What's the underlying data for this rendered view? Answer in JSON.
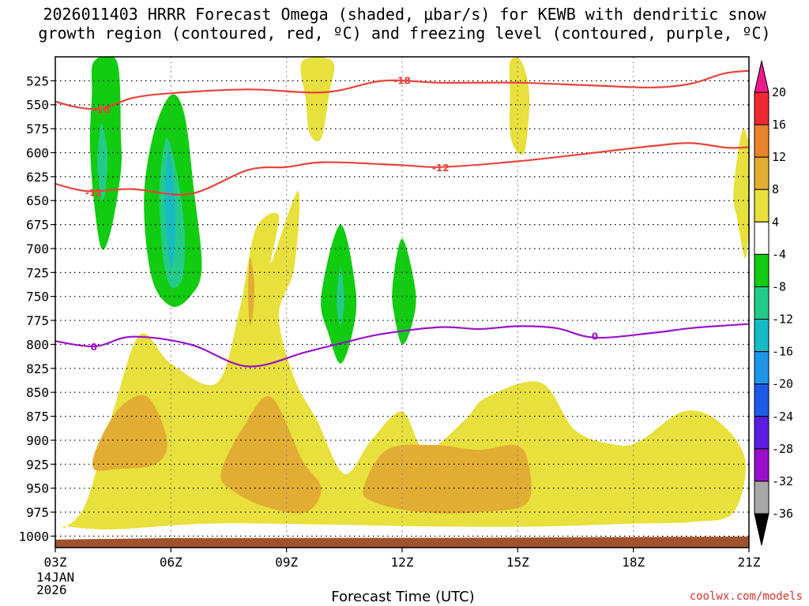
{
  "chart_data": {
    "type": "heatmap",
    "title_line1": "2026011403 HRRR Forecast Omega (shaded, μbar/s) for KEWB with dendritic snow",
    "title_line2": "growth region (contoured, red, ºC) and freezing level (contoured, purple, ºC)",
    "xlabel": "Forecast Time (UTC)",
    "date_label_1": "14JAN",
    "date_label_2": "2026",
    "credit": "coolwx.com/models",
    "x_ticks": [
      {
        "hour": 0,
        "label": "03Z"
      },
      {
        "hour": 3,
        "label": "06Z"
      },
      {
        "hour": 6,
        "label": "09Z"
      },
      {
        "hour": 9,
        "label": "12Z"
      },
      {
        "hour": 12,
        "label": "15Z"
      },
      {
        "hour": 15,
        "label": "18Z"
      },
      {
        "hour": 18,
        "label": "21Z"
      }
    ],
    "x_range_hours": [
      0,
      18
    ],
    "y_ticks": [
      525,
      550,
      575,
      600,
      625,
      650,
      675,
      700,
      725,
      750,
      775,
      800,
      825,
      850,
      875,
      900,
      925,
      950,
      975,
      1000
    ],
    "y_range_hpa": [
      500,
      1012
    ],
    "colorbar": {
      "labels": [
        20,
        16,
        12,
        8,
        4,
        -4,
        -8,
        -12,
        -16,
        -20,
        -24,
        -28,
        -32,
        -36
      ],
      "colors": [
        "#ec2a32",
        "#e8832c",
        "#e2ad33",
        "#e8e03c",
        "#ffffff",
        "#11cc11",
        "#22cc88",
        "#14bcc6",
        "#1e96e8",
        "#1e5ae8",
        "#5a1ee0",
        "#9a0fcc",
        "#a8a8a8"
      ],
      "top_arrow_color": "#ee1a8c",
      "bottom_arrow_color": "#000000"
    },
    "shaded_regions": [
      {
        "level": "pos_4_8",
        "color": "#e8e03c",
        "shape": [
          [
            0.3,
            990
          ],
          [
            0.8,
            965
          ],
          [
            1.5,
            870
          ],
          [
            2.2,
            790
          ],
          [
            3.0,
            820
          ],
          [
            4.2,
            840
          ],
          [
            4.8,
            760
          ],
          [
            5.2,
            680
          ],
          [
            5.8,
            665
          ],
          [
            5.6,
            715
          ],
          [
            6.3,
            640
          ],
          [
            6.2,
            720
          ],
          [
            5.8,
            770
          ],
          [
            6.2,
            835
          ],
          [
            6.8,
            880
          ],
          [
            7.5,
            935
          ],
          [
            8.2,
            900
          ],
          [
            9.0,
            870
          ],
          [
            9.6,
            910
          ],
          [
            10.6,
            880
          ],
          [
            11.2,
            855
          ],
          [
            12.6,
            840
          ],
          [
            13.5,
            890
          ],
          [
            14.6,
            905
          ],
          [
            15.2,
            900
          ],
          [
            16.3,
            870
          ],
          [
            17.2,
            880
          ],
          [
            17.9,
            920
          ],
          [
            17.6,
            975
          ],
          [
            16.6,
            985
          ],
          [
            15.0,
            987
          ],
          [
            12.5,
            990
          ],
          [
            10.0,
            990
          ],
          [
            7.0,
            988
          ],
          [
            4.0,
            987
          ],
          [
            1.5,
            993
          ],
          [
            0.3,
            990
          ]
        ]
      },
      {
        "level": "pos_4_8",
        "color": "#e8e03c",
        "shape": [
          [
            6.4,
            505
          ],
          [
            7.2,
            505
          ],
          [
            7.1,
            540
          ],
          [
            6.9,
            585
          ],
          [
            6.6,
            580
          ],
          [
            6.5,
            545
          ]
        ]
      },
      {
        "level": "pos_4_8",
        "color": "#e8e03c",
        "shape": [
          [
            11.8,
            505
          ],
          [
            12.1,
            505
          ],
          [
            12.3,
            540
          ],
          [
            12.2,
            595
          ],
          [
            12.0,
            600
          ],
          [
            11.8,
            580
          ],
          [
            11.8,
            540
          ]
        ]
      },
      {
        "level": "pos_4_8",
        "color": "#e8e03c",
        "shape": [
          [
            17.85,
            575
          ],
          [
            18.1,
            620
          ],
          [
            18.0,
            680
          ],
          [
            17.9,
            710
          ],
          [
            17.7,
            670
          ],
          [
            17.6,
            640
          ]
        ]
      },
      {
        "level": "pos_8_12",
        "color": "#e2ad33",
        "shape": [
          [
            1.0,
            930
          ],
          [
            1.1,
            905
          ],
          [
            1.7,
            865
          ],
          [
            2.4,
            855
          ],
          [
            2.9,
            900
          ],
          [
            2.6,
            925
          ],
          [
            1.6,
            930
          ]
        ]
      },
      {
        "level": "pos_8_12",
        "color": "#e2ad33",
        "shape": [
          [
            4.3,
            935
          ],
          [
            4.9,
            885
          ],
          [
            5.6,
            855
          ],
          [
            6.4,
            920
          ],
          [
            6.9,
            950
          ],
          [
            6.5,
            975
          ],
          [
            5.5,
            970
          ],
          [
            4.7,
            955
          ]
        ]
      },
      {
        "level": "pos_8_12",
        "color": "#e2ad33",
        "shape": [
          [
            8.0,
            950
          ],
          [
            8.6,
            910
          ],
          [
            9.8,
            905
          ],
          [
            11.0,
            910
          ],
          [
            11.9,
            905
          ],
          [
            12.25,
            920
          ],
          [
            12.25,
            965
          ],
          [
            11.0,
            975
          ],
          [
            9.5,
            975
          ],
          [
            8.3,
            965
          ]
        ]
      },
      {
        "level": "pos_8_12",
        "color": "#e2ad33",
        "shape": [
          [
            5.0,
            745
          ],
          [
            5.05,
            710
          ],
          [
            5.15,
            730
          ],
          [
            5.15,
            760
          ],
          [
            5.05,
            780
          ]
        ]
      },
      {
        "level": "neg_4_8",
        "color": "#11cc11",
        "shape": [
          [
            1.0,
            505
          ],
          [
            1.6,
            505
          ],
          [
            1.7,
            580
          ],
          [
            1.7,
            620
          ],
          [
            1.45,
            680
          ],
          [
            1.2,
            700
          ],
          [
            1.0,
            650
          ],
          [
            0.9,
            590
          ],
          [
            0.95,
            540
          ]
        ]
      },
      {
        "level": "neg_8_12",
        "color": "#22cc88",
        "shape": [
          [
            1.2,
            570
          ],
          [
            1.35,
            600
          ],
          [
            1.3,
            640
          ],
          [
            1.2,
            650
          ],
          [
            1.1,
            620
          ],
          [
            1.1,
            600
          ]
        ]
      },
      {
        "level": "neg_4_8",
        "color": "#11cc11",
        "shape": [
          [
            3.0,
            540
          ],
          [
            3.35,
            560
          ],
          [
            3.6,
            640
          ],
          [
            3.8,
            720
          ],
          [
            3.5,
            750
          ],
          [
            3.0,
            760
          ],
          [
            2.5,
            730
          ],
          [
            2.3,
            650
          ],
          [
            2.55,
            580
          ]
        ]
      },
      {
        "level": "neg_8_12",
        "color": "#22cc88",
        "shape": [
          [
            2.9,
            585
          ],
          [
            3.15,
            620
          ],
          [
            3.35,
            680
          ],
          [
            3.3,
            730
          ],
          [
            3.0,
            740
          ],
          [
            2.8,
            710
          ],
          [
            2.7,
            650
          ],
          [
            2.75,
            615
          ]
        ]
      },
      {
        "level": "neg_12_16",
        "color": "#14bcc6",
        "shape": [
          [
            2.95,
            600
          ],
          [
            3.1,
            650
          ],
          [
            3.1,
            700
          ],
          [
            3.0,
            720
          ],
          [
            2.9,
            690
          ],
          [
            2.85,
            640
          ]
        ]
      },
      {
        "level": "neg_4_8",
        "color": "#11cc11",
        "shape": [
          [
            7.4,
            675
          ],
          [
            7.8,
            745
          ],
          [
            7.7,
            790
          ],
          [
            7.4,
            820
          ],
          [
            7.1,
            790
          ],
          [
            6.9,
            750
          ]
        ]
      },
      {
        "level": "neg_8_12",
        "color": "#22cc88",
        "shape": [
          [
            7.4,
            720
          ],
          [
            7.5,
            755
          ],
          [
            7.4,
            780
          ],
          [
            7.3,
            755
          ]
        ]
      },
      {
        "level": "neg_4_8",
        "color": "#11cc11",
        "shape": [
          [
            9.0,
            690
          ],
          [
            9.35,
            745
          ],
          [
            9.25,
            780
          ],
          [
            9.0,
            800
          ],
          [
            8.8,
            770
          ],
          [
            8.75,
            740
          ]
        ]
      }
    ],
    "series": [
      {
        "name": "-18 °C isotherm",
        "color": "#e8433a",
        "points": [
          [
            -0.2,
            544
          ],
          [
            0.5,
            552
          ],
          [
            1.2,
            554
          ],
          [
            2.0,
            543
          ],
          [
            3.0,
            538
          ],
          [
            5.0,
            534
          ],
          [
            7.0,
            537
          ],
          [
            8.5,
            525
          ],
          [
            10.0,
            527
          ],
          [
            12.0,
            527
          ],
          [
            14.0,
            530
          ],
          [
            15.5,
            532
          ],
          [
            16.5,
            528
          ],
          [
            17.4,
            517
          ],
          [
            18.3,
            514
          ]
        ],
        "label_positions": [
          [
            1.2,
            555
          ],
          [
            9.0,
            525
          ]
        ],
        "label": "-18"
      },
      {
        "name": "-12 °C isotherm",
        "color": "#e8433a",
        "points": [
          [
            -0.2,
            630
          ],
          [
            0.8,
            640
          ],
          [
            2.0,
            638
          ],
          [
            3.5,
            643
          ],
          [
            5.0,
            618
          ],
          [
            6.0,
            615
          ],
          [
            7.0,
            610
          ],
          [
            9.0,
            613
          ],
          [
            10.0,
            615
          ],
          [
            12.0,
            609
          ],
          [
            14.0,
            600
          ],
          [
            15.5,
            593
          ],
          [
            16.5,
            590
          ],
          [
            17.5,
            595
          ],
          [
            18.3,
            593
          ]
        ],
        "label_positions": [
          [
            1.0,
            642
          ],
          [
            10.0,
            616
          ]
        ],
        "label": "-12"
      },
      {
        "name": "0 °C freezing level",
        "color": "#9a12cc",
        "points": [
          [
            -0.2,
            795
          ],
          [
            1.0,
            802
          ],
          [
            2.0,
            792
          ],
          [
            3.5,
            800
          ],
          [
            5.0,
            823
          ],
          [
            6.5,
            808
          ],
          [
            7.5,
            798
          ],
          [
            8.5,
            789
          ],
          [
            10.0,
            782
          ],
          [
            11.0,
            784
          ],
          [
            12.0,
            781
          ],
          [
            13.0,
            783
          ],
          [
            14.0,
            793
          ],
          [
            15.5,
            788
          ],
          [
            16.5,
            783
          ],
          [
            17.5,
            780
          ],
          [
            18.3,
            778
          ]
        ],
        "label_positions": [
          [
            1.0,
            803
          ],
          [
            14.0,
            792
          ]
        ],
        "label": "0"
      }
    ],
    "terrain_color": "#a0522d"
  }
}
